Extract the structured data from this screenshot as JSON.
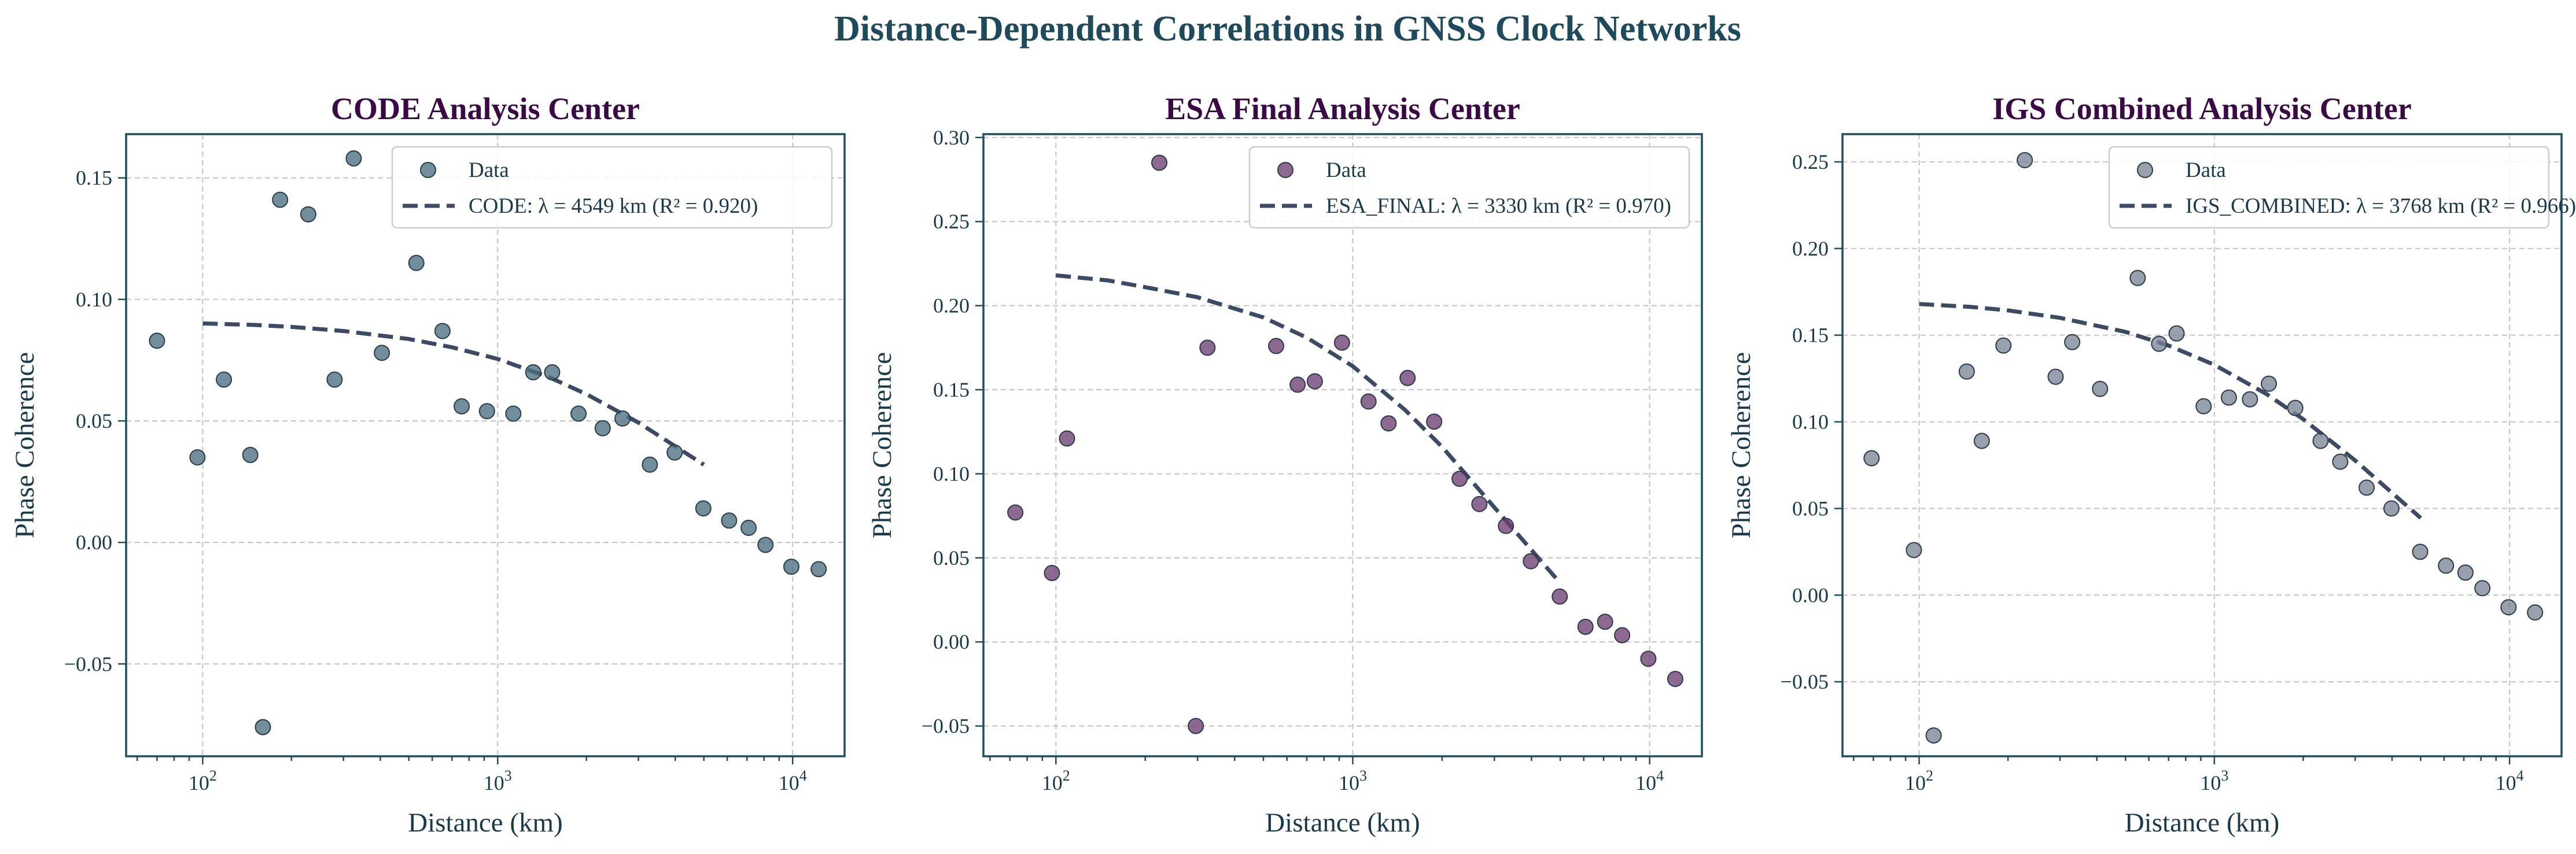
{
  "figure": {
    "title": "Distance-Dependent Correlations in GNSS Clock Networks",
    "title_color": "#1e4a5c",
    "subplot_title_color": "#3a0a45",
    "fit_color": "#3d4a63"
  },
  "chart_data": [
    {
      "type": "scatter",
      "title": "CODE Analysis Center",
      "xlabel": "Distance (km)",
      "ylabel": "Phase Coherence",
      "x_scale": "log",
      "xlim": [
        55,
        15000
      ],
      "ylim": [
        -0.088,
        0.168
      ],
      "yticks": [
        -0.05,
        0.0,
        0.05,
        0.1,
        0.15
      ],
      "ytick_labels": [
        "−0.05",
        "0.00",
        "0.05",
        "0.10",
        "0.15"
      ],
      "xticks": [
        100,
        1000,
        10000
      ],
      "xtick_labels": [
        {
          "base": "10",
          "exp": "2"
        },
        {
          "base": "10",
          "exp": "3"
        },
        {
          "base": "10",
          "exp": "4"
        }
      ],
      "legend_position": "upper right",
      "marker_color": "#4a6e80",
      "series": [
        {
          "name": "Data",
          "kind": "scatter",
          "x": [
            70,
            96,
            118,
            145,
            160,
            183,
            228,
            280,
            325,
            405,
            530,
            650,
            755,
            920,
            1130,
            1320,
            1530,
            1880,
            2270,
            2650,
            3280,
            3980,
            4980,
            6090,
            7090,
            8090,
            9900,
            12250
          ],
          "y": [
            0.083,
            0.035,
            0.067,
            0.036,
            -0.076,
            0.141,
            0.135,
            0.067,
            0.158,
            0.078,
            0.115,
            0.087,
            0.056,
            0.054,
            0.053,
            0.07,
            0.07,
            0.053,
            0.047,
            0.051,
            0.032,
            0.037,
            0.014,
            0.009,
            0.006,
            -0.001,
            -0.01,
            -0.011
          ]
        },
        {
          "name": "CODE: λ = 4549 km (R² = 0.920)",
          "kind": "fit",
          "x": [
            100,
            150,
            200,
            300,
            500,
            700,
            1000,
            1500,
            2000,
            3000,
            5000
          ],
          "y": [
            0.0901,
            0.0895,
            0.0887,
            0.087,
            0.0837,
            0.0803,
            0.0755,
            0.0679,
            0.061,
            0.0493,
            0.032
          ]
        }
      ]
    },
    {
      "type": "scatter",
      "title": "ESA Final Analysis Center",
      "xlabel": "Distance (km)",
      "ylabel": "Phase Coherence",
      "x_scale": "log",
      "xlim": [
        57,
        15000
      ],
      "ylim": [
        -0.068,
        0.302
      ],
      "yticks": [
        -0.05,
        0.0,
        0.05,
        0.1,
        0.15,
        0.2,
        0.25,
        0.3
      ],
      "ytick_labels": [
        "−0.05",
        "0.00",
        "0.05",
        "0.10",
        "0.15",
        "0.20",
        "0.25",
        "0.30"
      ],
      "xticks": [
        100,
        1000,
        10000
      ],
      "xtick_labels": [
        {
          "base": "10",
          "exp": "2"
        },
        {
          "base": "10",
          "exp": "3"
        },
        {
          "base": "10",
          "exp": "4"
        }
      ],
      "legend_position": "upper right",
      "marker_color": "#6d3d72",
      "series": [
        {
          "name": "Data",
          "kind": "scatter",
          "x": [
            73,
            97,
            109,
            223,
            296,
            324,
            552,
            652,
            745,
            920,
            1130,
            1320,
            1530,
            1880,
            2290,
            2670,
            3280,
            3980,
            4980,
            6080,
            7080,
            8080,
            9900,
            12200
          ],
          "y": [
            0.077,
            0.041,
            0.121,
            0.285,
            -0.05,
            0.175,
            0.176,
            0.153,
            0.155,
            0.178,
            0.143,
            0.13,
            0.157,
            0.131,
            0.097,
            0.082,
            0.069,
            0.048,
            0.027,
            0.009,
            0.012,
            0.004,
            -0.01,
            -0.022
          ]
        },
        {
          "name": "ESA_FINAL: λ = 3330 km (R² = 0.970)",
          "kind": "fit",
          "x": [
            100,
            150,
            200,
            300,
            500,
            700,
            1000,
            1500,
            2000,
            3000,
            5000
          ],
          "y": [
            0.218,
            0.215,
            0.211,
            0.205,
            0.193,
            0.181,
            0.164,
            0.138,
            0.116,
            0.08,
            0.035
          ]
        }
      ]
    },
    {
      "type": "scatter",
      "title": "IGS Combined Analysis Center",
      "xlabel": "Distance (km)",
      "ylabel": "Phase Coherence",
      "x_scale": "log",
      "xlim": [
        55,
        15000
      ],
      "ylim": [
        -0.093,
        0.266
      ],
      "yticks": [
        -0.05,
        0.0,
        0.05,
        0.1,
        0.15,
        0.2,
        0.25
      ],
      "ytick_labels": [
        "−0.05",
        "0.00",
        "0.05",
        "0.10",
        "0.15",
        "0.20",
        "0.25"
      ],
      "xticks": [
        100,
        1000,
        10000
      ],
      "xtick_labels": [
        {
          "base": "10",
          "exp": "2"
        },
        {
          "base": "10",
          "exp": "3"
        },
        {
          "base": "10",
          "exp": "4"
        }
      ],
      "legend_position": "upper right",
      "marker_color": "#7b8496",
      "series": [
        {
          "name": "Data",
          "kind": "scatter",
          "x": [
            69,
            96,
            112,
            145,
            163,
            193,
            228,
            290,
            330,
            410,
            550,
            650,
            745,
            920,
            1120,
            1320,
            1530,
            1880,
            2290,
            2670,
            3280,
            3980,
            4980,
            6090,
            7090,
            8090,
            9920,
            12200
          ],
          "y": [
            0.079,
            0.026,
            -0.081,
            0.129,
            0.089,
            0.144,
            0.251,
            0.126,
            0.146,
            0.119,
            0.183,
            0.145,
            0.151,
            0.109,
            0.114,
            0.113,
            0.122,
            0.108,
            0.089,
            0.077,
            0.062,
            0.05,
            0.025,
            0.017,
            0.013,
            0.004,
            -0.007,
            -0.01
          ]
        },
        {
          "name": "IGS_COMBINED: λ = 3768 km (R² = 0.966)",
          "kind": "fit",
          "x": [
            100,
            150,
            200,
            300,
            500,
            700,
            1000,
            1500,
            2000,
            3000,
            5000
          ],
          "y": [
            0.168,
            0.1663,
            0.1643,
            0.16,
            0.1519,
            0.144,
            0.1329,
            0.1161,
            0.1015,
            0.0777,
            0.0445
          ]
        }
      ]
    }
  ]
}
